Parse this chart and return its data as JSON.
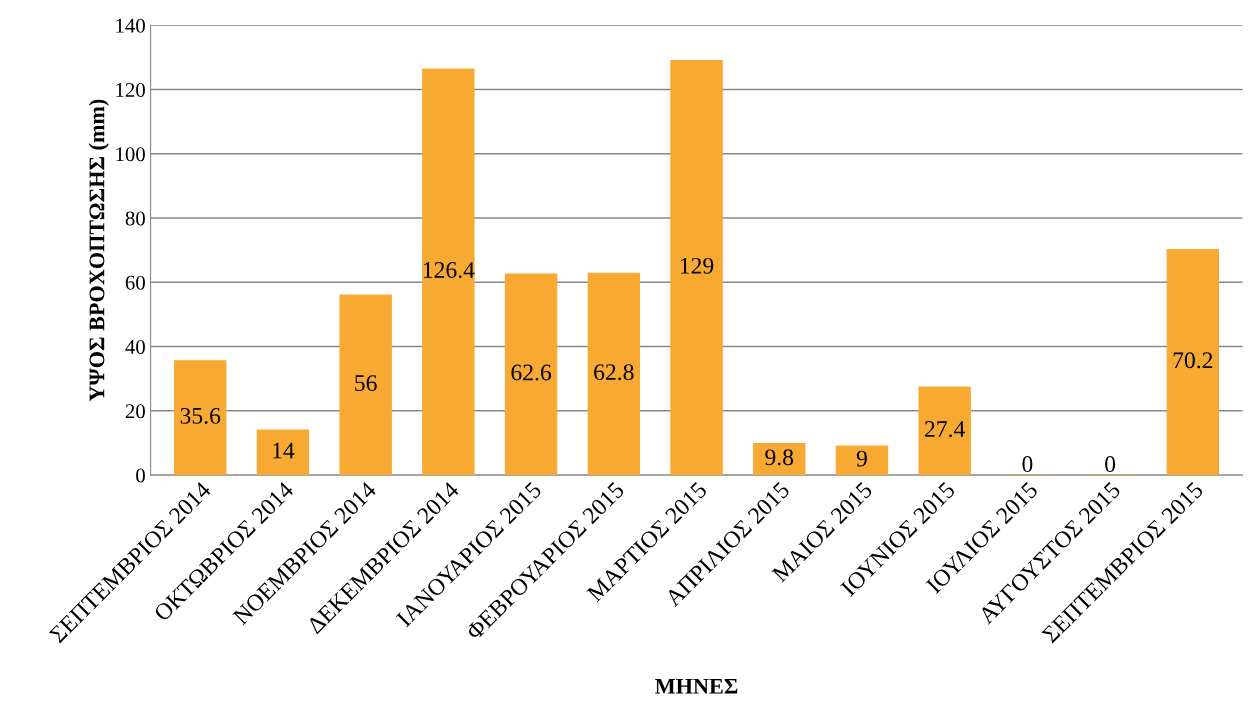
{
  "chart_data": {
    "type": "bar",
    "xlabel": "ΜΗΝΕΣ",
    "ylabel": "ΥΨΟΣ ΒΡΟΧΟΠΤΩΣΗΣ (mm)",
    "categories": [
      "ΣΕΠΤΕΜΒΡΙΟΣ 2014",
      "ΟΚΤΩΒΡΙΟΣ 2014",
      "ΝΟΕΜΒΡΙΟΣ 2014",
      "ΔΕΚΕΜΒΡΙΟΣ 2014",
      "ΙΑΝΟΥΑΡΙΟΣ 2015",
      "ΦΕΒΡΟΥΑΡΙΟΣ 2015",
      "ΜΑΡΤΙΟΣ 2015",
      "ΑΠΡΙΛΙΟΣ 2015",
      "ΜΑΙΟΣ 2015",
      "ΙΟΥΝΙΟΣ 2015",
      "ΙΟΥΛΙΟΣ 2015",
      "ΑΥΓΟΥΣΤΟΣ 2015",
      "ΣΕΠΤΕΜΒΡΙΟΣ 2015"
    ],
    "values": [
      35.6,
      14,
      56,
      126.4,
      62.6,
      62.8,
      129,
      9.8,
      9,
      27.4,
      0,
      0,
      70.2
    ],
    "color": "#f7a932",
    "ylim": [
      0,
      140
    ],
    "yticks": [
      0,
      20,
      40,
      60,
      80,
      100,
      120,
      140
    ],
    "grid": "y",
    "data_labels": true,
    "legend": false
  }
}
